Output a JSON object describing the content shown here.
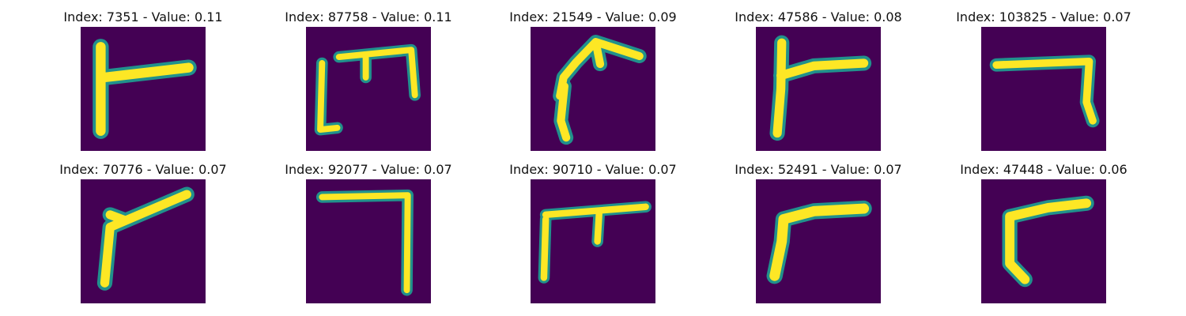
{
  "figure": {
    "colors": {
      "background": "#440154",
      "stroke_edge": "#21918c",
      "stroke_core": "#fde725"
    },
    "panels": [
      {
        "title": "Index: 7351 - Value: 0.11"
      },
      {
        "title": "Index: 87758 - Value: 0.11"
      },
      {
        "title": "Index: 21549 - Value: 0.09"
      },
      {
        "title": "Index: 47586 - Value: 0.08"
      },
      {
        "title": "Index: 103825 - Value: 0.07"
      },
      {
        "title": "Index: 70776 - Value: 0.07"
      },
      {
        "title": "Index: 92077 - Value: 0.07"
      },
      {
        "title": "Index: 90710 - Value: 0.07"
      },
      {
        "title": "Index: 52491 - Value: 0.07"
      },
      {
        "title": "Index: 47448 - Value: 0.06"
      }
    ]
  }
}
